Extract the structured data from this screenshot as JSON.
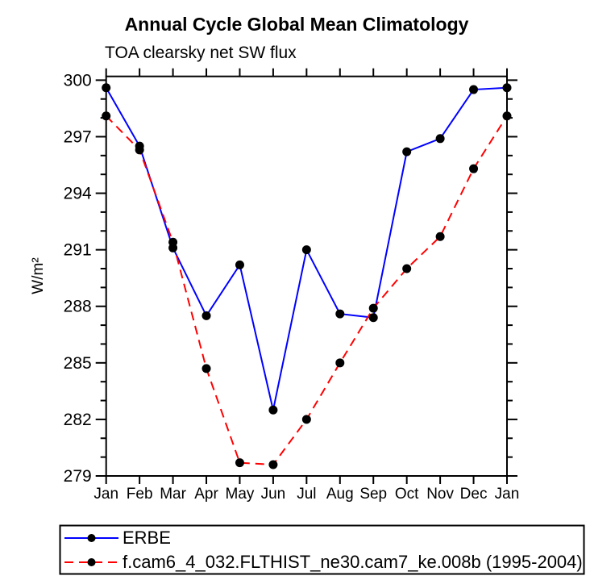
{
  "header": {
    "title": "Annual Cycle Global Mean Climatology",
    "subtitle": "TOA clearsky net SW flux"
  },
  "chart_data": {
    "type": "line",
    "title": "Annual Cycle Global Mean Climatology",
    "subtitle": "TOA clearsky net SW flux",
    "ylabel": "W/m²",
    "xlabel": "",
    "categories": [
      "Jan",
      "Feb",
      "Mar",
      "Apr",
      "May",
      "Jun",
      "Jul",
      "Aug",
      "Sep",
      "Oct",
      "Nov",
      "Dec",
      "Jan"
    ],
    "series": [
      {
        "name": "ERBE",
        "color": "#0000ff",
        "style": "solid",
        "marker": "filled-circle",
        "marker_color": "#000000",
        "values": [
          299.6,
          296.5,
          291.1,
          287.5,
          290.2,
          282.5,
          291.0,
          287.6,
          287.4,
          296.2,
          296.9,
          299.5,
          299.6
        ]
      },
      {
        "name": "f.cam6_4_032.FLTHIST_ne30.cam7_ke.008b (1995-2004)",
        "color": "#ff0000",
        "style": "dashed",
        "marker": "filled-circle",
        "marker_color": "#000000",
        "values": [
          298.1,
          296.3,
          291.4,
          284.7,
          279.7,
          279.6,
          282.0,
          285.0,
          287.9,
          290.0,
          291.7,
          295.3,
          298.1
        ]
      }
    ],
    "ylim": [
      279.0,
      300.2
    ],
    "yticks_major": [
      279,
      282,
      285,
      288,
      291,
      294,
      297,
      300
    ],
    "ytick_minor_step": 1,
    "grid": false,
    "legend_position": "bottom",
    "axis_color": "#000000"
  }
}
